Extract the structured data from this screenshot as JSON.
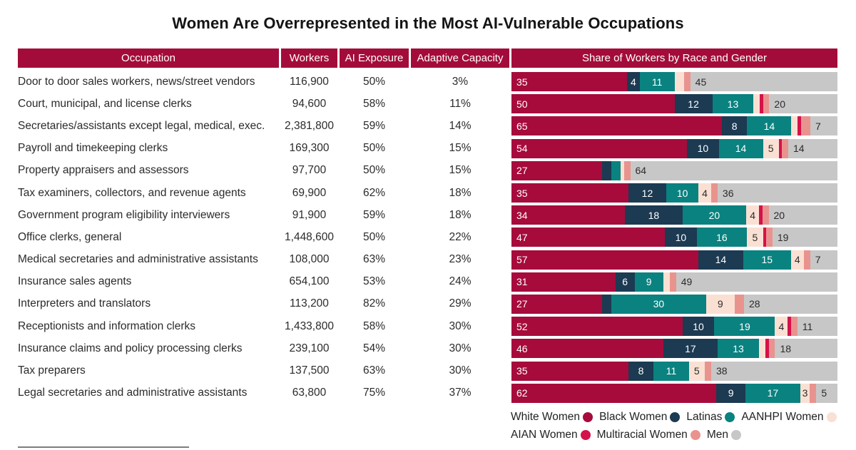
{
  "title": "Women Are Overrepresented in the Most AI-Vulnerable Occupations",
  "colors": {
    "header_bg": "#A30C3A",
    "white_women": "#A60B3C",
    "black_women": "#1C3A52",
    "latinas": "#0A8280",
    "aanhpi_women": "#FAE0D3",
    "aian_women": "#D5124A",
    "multiracial_women": "#E9938F",
    "men": "#C7C7C7",
    "bar_label_light": "#FFFFFF",
    "bar_label_dark": "#2b2b2b"
  },
  "table_headers": {
    "occupation": "Occupation",
    "workers": "Workers",
    "ai_exposure": "AI Exposure",
    "adaptive_capacity": "Adaptive Capacity",
    "share": "Share of Workers by Race and Gender"
  },
  "chart_data": {
    "type": "bar",
    "subtype": "horizontal-stacked-100pct",
    "title": "Women Are Overrepresented in the Most AI-Vulnerable Occupations",
    "series_names": [
      "White Women",
      "Black Women",
      "Latinas",
      "AANHPI Women",
      "AIAN Women",
      "Multiracial Women",
      "Men"
    ],
    "series_colors": [
      "#A60B3C",
      "#1C3A52",
      "#0A8280",
      "#FAE0D3",
      "#D5124A",
      "#E9938F",
      "#C7C7C7"
    ],
    "xlim": [
      0,
      100
    ],
    "legend_position": "bottom-right",
    "rows": [
      {
        "occupation": "Door to door sales workers, news/street vendors",
        "workers": "116,900",
        "ai_exposure": "50%",
        "adaptive_capacity": "3%",
        "shares": [
          35,
          4,
          11,
          3,
          0,
          2,
          45
        ],
        "share_labels": [
          "35",
          "4",
          "11",
          "",
          "",
          "",
          "45"
        ]
      },
      {
        "occupation": "Court, municipal, and license clerks",
        "workers": "94,600",
        "ai_exposure": "58%",
        "adaptive_capacity": "11%",
        "shares": [
          50,
          12,
          13,
          2,
          1,
          2,
          20
        ],
        "share_labels": [
          "50",
          "12",
          "13",
          "",
          "",
          "",
          "20"
        ]
      },
      {
        "occupation": "Secretaries/assistants except legal, medical, exec.",
        "workers": "2,381,800",
        "ai_exposure": "59%",
        "adaptive_capacity": "14%",
        "shares": [
          65,
          8,
          14,
          2,
          1,
          3,
          7
        ],
        "share_labels": [
          "65",
          "8",
          "14",
          "",
          "",
          "",
          "7"
        ]
      },
      {
        "occupation": "Payroll and timekeeping clerks",
        "workers": "169,300",
        "ai_exposure": "50%",
        "adaptive_capacity": "15%",
        "shares": [
          54,
          10,
          14,
          5,
          1,
          2,
          14
        ],
        "share_labels": [
          "54",
          "10",
          "14",
          "5",
          "",
          "",
          "14"
        ]
      },
      {
        "occupation": "Property appraisers and assessors",
        "workers": "97,700",
        "ai_exposure": "50%",
        "adaptive_capacity": "15%",
        "shares": [
          27,
          3,
          3,
          1,
          0,
          2,
          64
        ],
        "share_labels": [
          "27",
          "",
          "",
          "",
          "",
          "",
          "64"
        ]
      },
      {
        "occupation": "Tax examiners, collectors, and revenue agents",
        "workers": "69,900",
        "ai_exposure": "62%",
        "adaptive_capacity": "18%",
        "shares": [
          35,
          12,
          10,
          4,
          0,
          2,
          36
        ],
        "share_labels": [
          "35",
          "12",
          "10",
          "4",
          "",
          "",
          "36"
        ]
      },
      {
        "occupation": "Government program eligibility interviewers",
        "workers": "91,900",
        "ai_exposure": "59%",
        "adaptive_capacity": "18%",
        "shares": [
          34,
          18,
          20,
          4,
          1,
          2,
          20
        ],
        "share_labels": [
          "34",
          "18",
          "20",
          "4",
          "",
          "",
          "20"
        ]
      },
      {
        "occupation": "Office clerks, general",
        "workers": "1,448,600",
        "ai_exposure": "50%",
        "adaptive_capacity": "22%",
        "shares": [
          47,
          10,
          16,
          5,
          1,
          2,
          19
        ],
        "share_labels": [
          "47",
          "10",
          "16",
          "5",
          "",
          "",
          "19"
        ]
      },
      {
        "occupation": "Medical secretaries and administrative assistants",
        "workers": "108,000",
        "ai_exposure": "63%",
        "adaptive_capacity": "23%",
        "shares": [
          57,
          14,
          15,
          4,
          0,
          2,
          7
        ],
        "share_labels": [
          "57",
          "14",
          "15",
          "4",
          "",
          "",
          "7"
        ]
      },
      {
        "occupation": "Insurance sales agents",
        "workers": "654,100",
        "ai_exposure": "53%",
        "adaptive_capacity": "24%",
        "shares": [
          31,
          6,
          9,
          2,
          0,
          2,
          49
        ],
        "share_labels": [
          "31",
          "6",
          "9",
          "",
          "",
          "",
          "49"
        ]
      },
      {
        "occupation": "Interpreters and translators",
        "workers": "113,200",
        "ai_exposure": "82%",
        "adaptive_capacity": "29%",
        "shares": [
          27,
          3,
          30,
          9,
          0,
          3,
          28
        ],
        "share_labels": [
          "27",
          "",
          "30",
          "9",
          "",
          "",
          "28"
        ]
      },
      {
        "occupation": "Receptionists and information clerks",
        "workers": "1,433,800",
        "ai_exposure": "58%",
        "adaptive_capacity": "30%",
        "shares": [
          52,
          10,
          19,
          4,
          1,
          2,
          11
        ],
        "share_labels": [
          "52",
          "10",
          "19",
          "4",
          "",
          "",
          "11"
        ]
      },
      {
        "occupation": "Insurance claims and policy processing clerks",
        "workers": "239,100",
        "ai_exposure": "54%",
        "adaptive_capacity": "30%",
        "shares": [
          46,
          17,
          13,
          2,
          1,
          2,
          18
        ],
        "share_labels": [
          "46",
          "17",
          "13",
          "",
          "",
          "",
          "18"
        ]
      },
      {
        "occupation": "Tax preparers",
        "workers": "137,500",
        "ai_exposure": "63%",
        "adaptive_capacity": "30%",
        "shares": [
          35,
          8,
          11,
          5,
          0,
          2,
          38
        ],
        "share_labels": [
          "35",
          "8",
          "11",
          "5",
          "",
          "",
          "38"
        ]
      },
      {
        "occupation": "Legal secretaries and administrative assistants",
        "workers": "63,800",
        "ai_exposure": "75%",
        "adaptive_capacity": "37%",
        "shares": [
          62,
          9,
          17,
          3,
          0,
          2,
          5
        ],
        "share_labels": [
          "62",
          "9",
          "17",
          "3",
          "",
          "",
          "5"
        ]
      }
    ]
  },
  "legend": {
    "lines": [
      [
        {
          "label": "White Women",
          "color_key": "white_women"
        },
        {
          "label": "Black Women",
          "color_key": "black_women"
        },
        {
          "label": "Latinas",
          "color_key": "latinas"
        },
        {
          "label": "AANHPI Women",
          "color_key": "aanhpi_women"
        }
      ],
      [
        {
          "label": "AIAN Women",
          "color_key": "aian_women"
        },
        {
          "label": "Multiracial Women",
          "color_key": "multiracial_women"
        },
        {
          "label": "Men",
          "color_key": "men"
        }
      ]
    ]
  }
}
